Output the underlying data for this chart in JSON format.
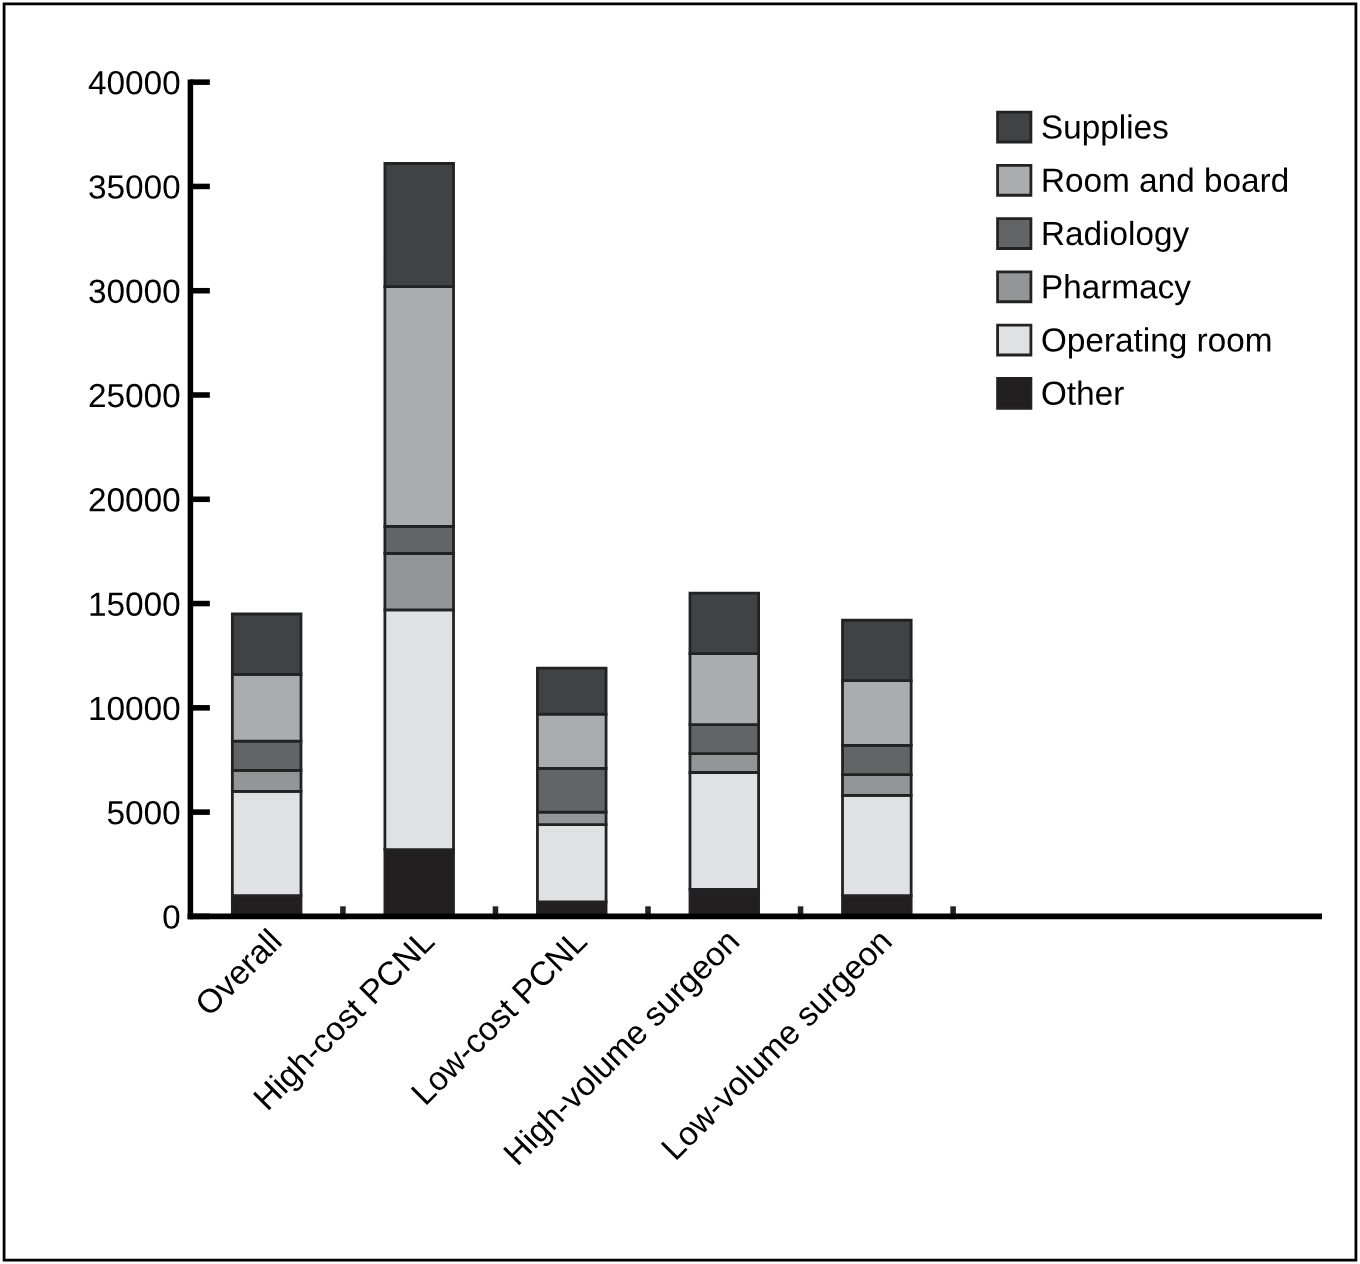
{
  "chart_data": {
    "type": "bar",
    "stacked": true,
    "categories": [
      "Overall",
      "High-cost PCNL",
      "Low-cost PCNL",
      "High-volume surgeon",
      "Low-volume surgeon"
    ],
    "series": [
      {
        "name": "Other",
        "color": "#231f20",
        "values": [
          1000,
          3200,
          700,
          1300,
          1000
        ]
      },
      {
        "name": "Operating room",
        "color": "#e0e1e3",
        "values": [
          5000,
          11500,
          3700,
          5600,
          4800
        ]
      },
      {
        "name": "Pharmacy",
        "color": "#939598",
        "values": [
          1000,
          2700,
          600,
          900,
          1000
        ]
      },
      {
        "name": "Radiology",
        "color": "#636466",
        "values": [
          1400,
          1300,
          2100,
          1400,
          1400
        ]
      },
      {
        "name": "Room and board",
        "color": "#abacae",
        "values": [
          3200,
          11500,
          2600,
          3400,
          3100
        ]
      },
      {
        "name": "Supplies",
        "color": "#414244",
        "values": [
          2900,
          5900,
          2200,
          2900,
          2900
        ]
      }
    ],
    "ylim": [
      0,
      40000
    ],
    "yticks": [
      0,
      5000,
      10000,
      15000,
      20000,
      25000,
      30000,
      35000,
      40000
    ],
    "legend": "top right",
    "grid": false
  }
}
